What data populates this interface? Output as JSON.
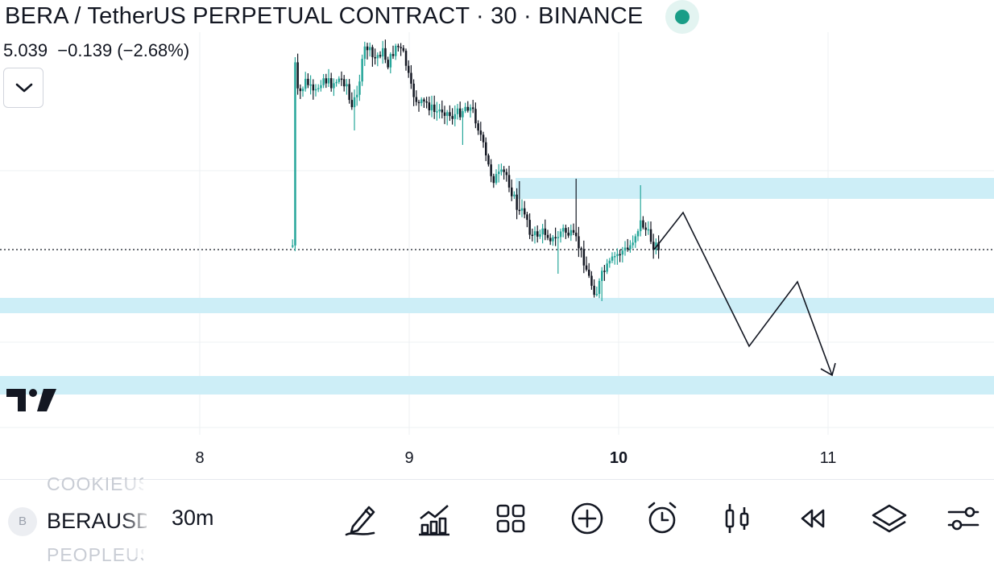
{
  "header": {
    "title": "BERA / TetherUS PERPETUAL CONTRACT · 30 · BINANCE",
    "price_change": "5.039  −0.139 (−2.68%)"
  },
  "colors": {
    "bull": "#26a69a",
    "bear": "#131722",
    "zone": "#cdeef7",
    "live": "#1a9d87"
  },
  "x_axis": {
    "ticks": [
      "8",
      "9",
      "10",
      "11"
    ],
    "active_tick": "10"
  },
  "chart_data": {
    "type": "candlestick",
    "interval": "30",
    "last_price": 5.039,
    "zones": [
      "resistance-zone",
      "support-zone-1",
      "support-zone-2"
    ],
    "projection": "zig-zag arrow pointing down to lower zone"
  },
  "toolbar": {
    "symbol_badge": "B",
    "symbol_ghost_top": "COOKIEUSDT",
    "symbol": "BERAUSDT",
    "symbol_ghost_bottom": "PEOPLEUSDT",
    "interval": "30m",
    "icons": [
      "draw-icon",
      "indicators-icon",
      "layout-grid-icon",
      "add-icon",
      "alert-icon",
      "candles-icon",
      "replay-icon",
      "layers-icon",
      "settings-icon"
    ]
  }
}
